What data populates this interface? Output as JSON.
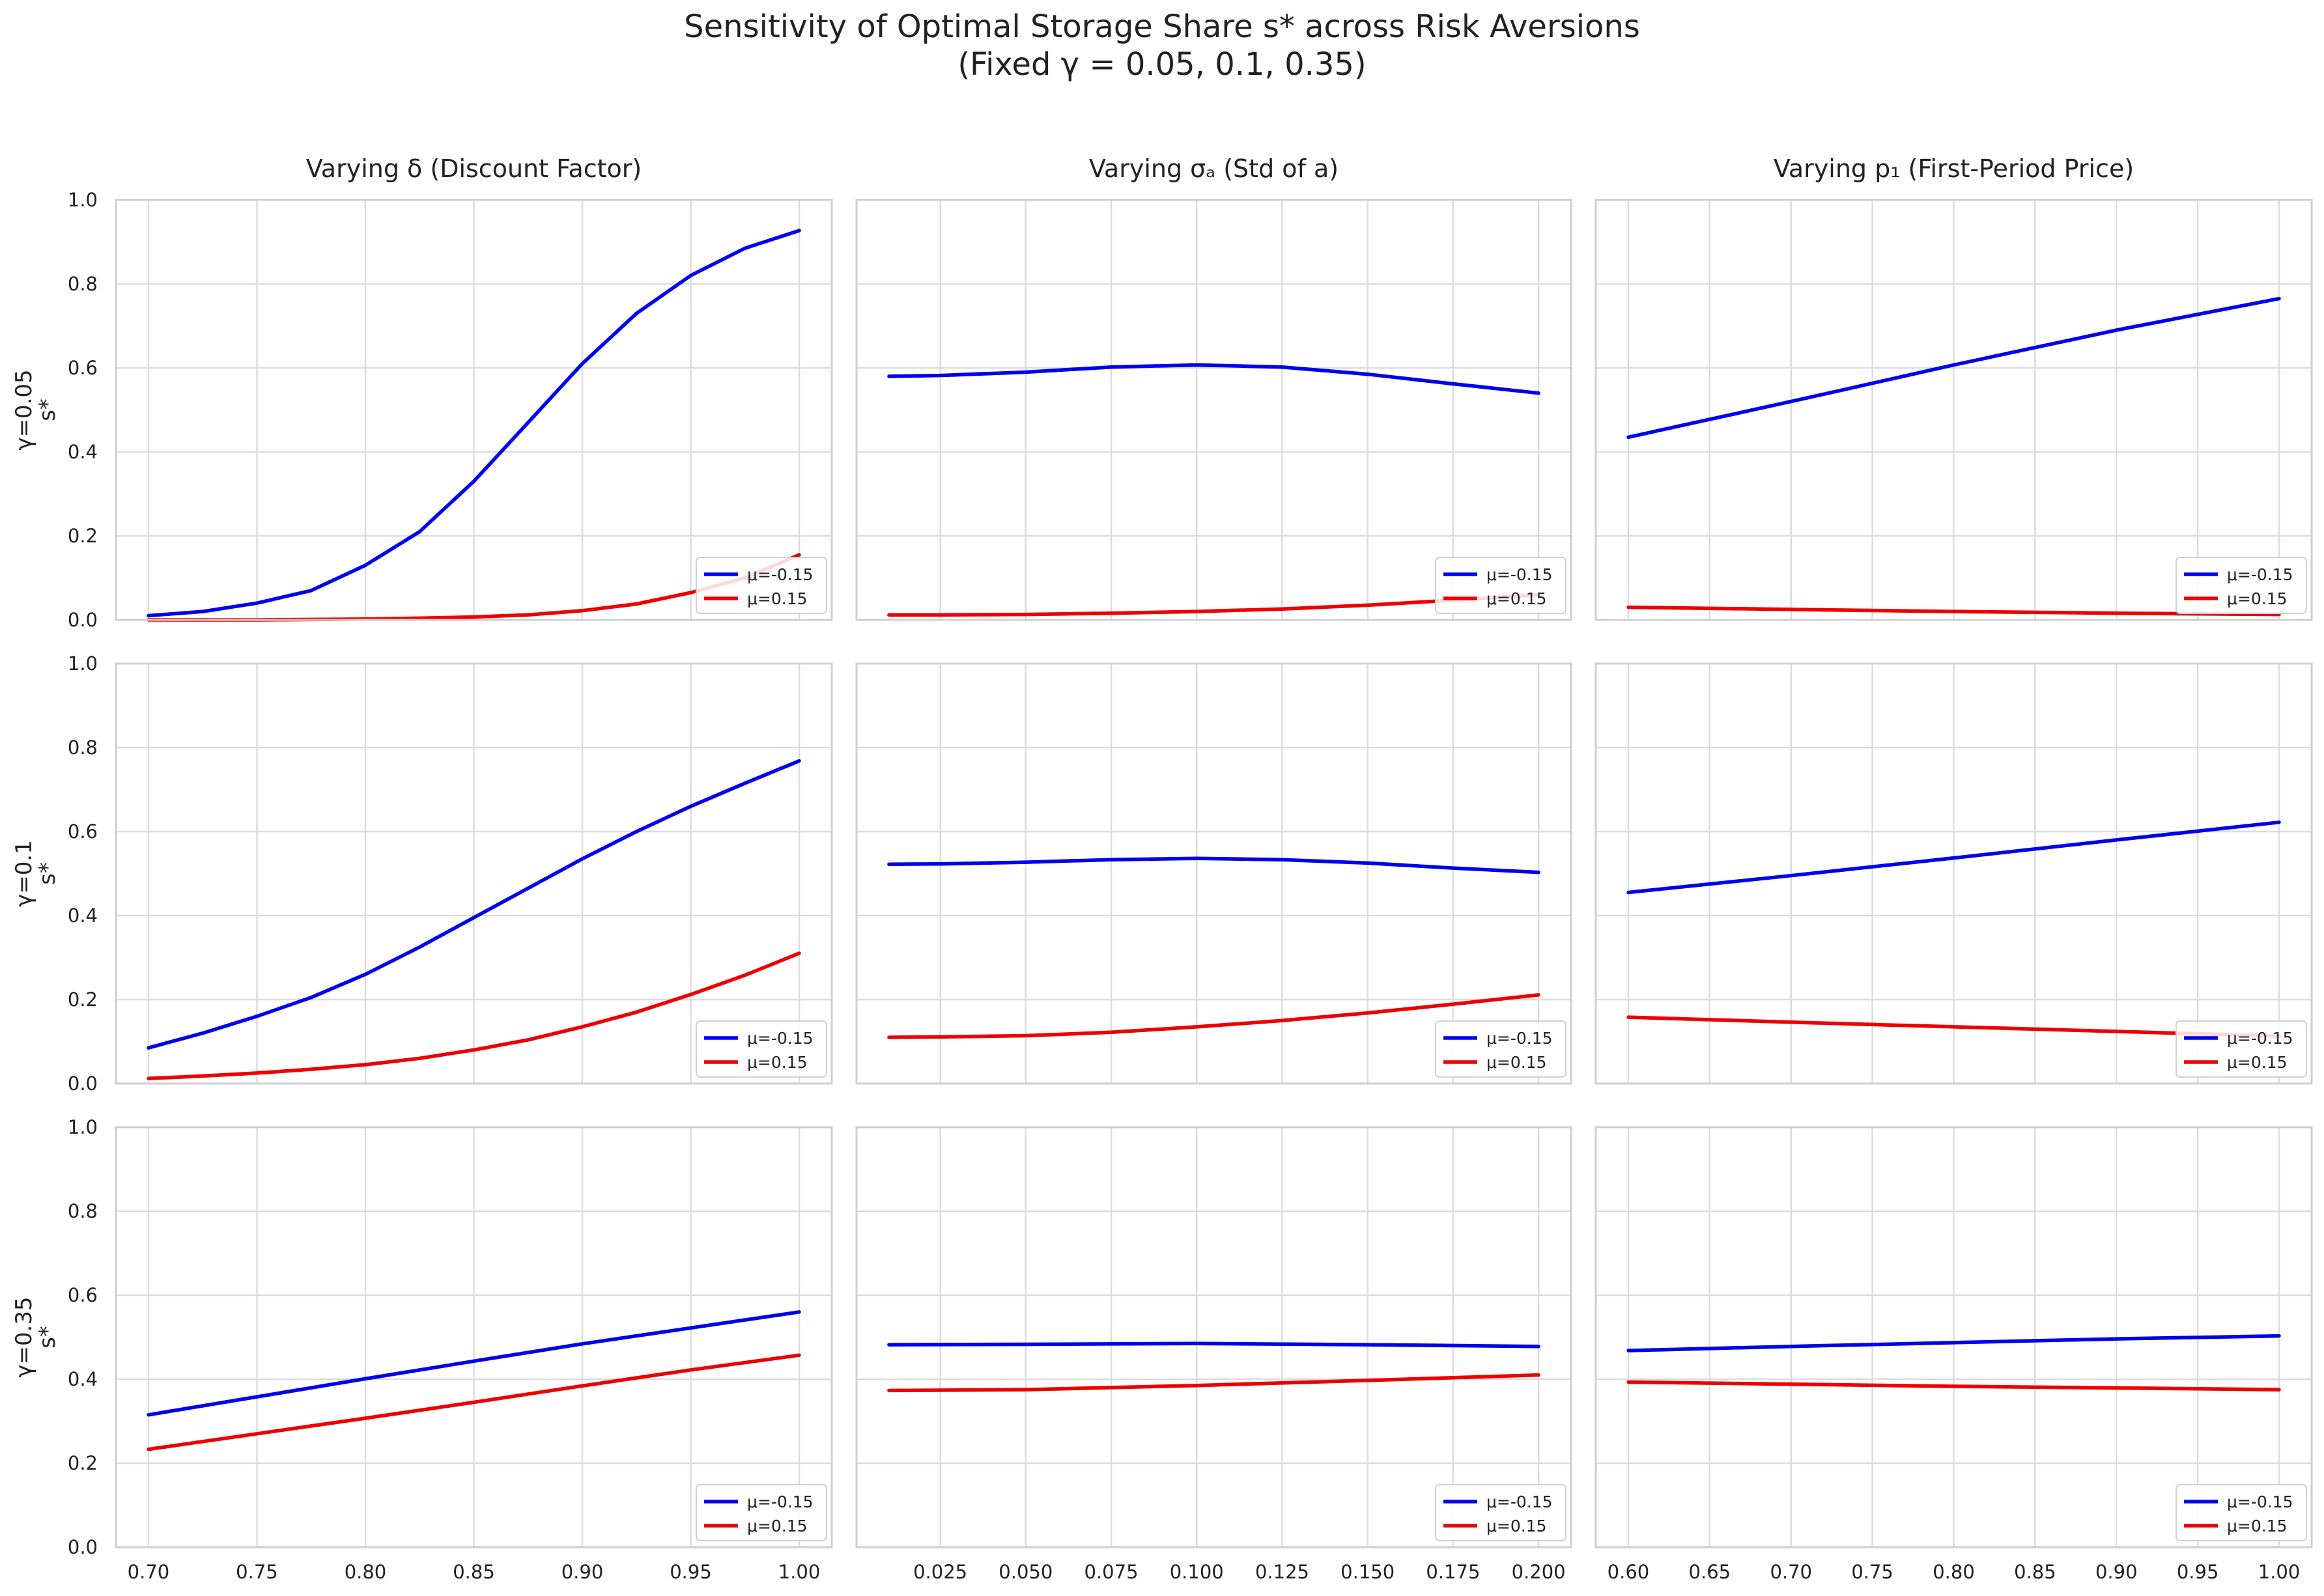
{
  "figure": {
    "title_line1": "Sensitivity of Optimal Storage Share s* across Risk Aversions",
    "title_line2": "(Fixed γ = 0.05, 0.1, 0.35)"
  },
  "series_colors": {
    "mu_neg": "#0000ee",
    "mu_pos": "#ee0000"
  },
  "chart_data": [
    {
      "type": "line",
      "row": 0,
      "col": 0,
      "title": "Varying δ (Discount Factor)",
      "row_label": "γ=0.05",
      "ylabel": "s*",
      "xlabel": "",
      "xlim": [
        0.685,
        1.015
      ],
      "ylim": [
        0,
        1
      ],
      "xticks": [
        "0.70",
        "0.75",
        "0.80",
        "0.85",
        "0.90",
        "0.95",
        "1.00"
      ],
      "yticks": [
        "0.0",
        "0.2",
        "0.4",
        "0.6",
        "0.8",
        "1.0"
      ],
      "legend": "lower-right",
      "x": [
        0.7,
        0.725,
        0.75,
        0.775,
        0.8,
        0.825,
        0.85,
        0.875,
        0.9,
        0.925,
        0.95,
        0.975,
        1.0
      ],
      "series": [
        {
          "name": "μ=-0.15",
          "color": "#0000ee",
          "values": [
            0.01,
            0.02,
            0.04,
            0.07,
            0.13,
            0.21,
            0.33,
            0.47,
            0.61,
            0.73,
            0.82,
            0.885,
            0.927
          ]
        },
        {
          "name": "μ=0.15",
          "color": "#ee0000",
          "values": [
            0.0,
            0.0,
            0.0,
            0.001,
            0.002,
            0.004,
            0.007,
            0.012,
            0.022,
            0.038,
            0.065,
            0.1,
            0.155
          ]
        }
      ]
    },
    {
      "type": "line",
      "row": 0,
      "col": 1,
      "title": "Varying σₐ (Std of a)",
      "row_label": "",
      "ylabel": "",
      "xlabel": "",
      "xlim": [
        0.0005,
        0.2095
      ],
      "ylim": [
        0,
        1
      ],
      "xticks": [
        "0.025",
        "0.050",
        "0.075",
        "0.100",
        "0.125",
        "0.150",
        "0.175",
        "0.200"
      ],
      "yticks": [],
      "legend": "lower-right",
      "x": [
        0.01,
        0.025,
        0.05,
        0.075,
        0.1,
        0.125,
        0.15,
        0.175,
        0.2
      ],
      "series": [
        {
          "name": "μ=-0.15",
          "color": "#0000ee",
          "values": [
            0.58,
            0.582,
            0.59,
            0.602,
            0.607,
            0.602,
            0.585,
            0.562,
            0.54
          ]
        },
        {
          "name": "μ=0.15",
          "color": "#ee0000",
          "values": [
            0.012,
            0.012,
            0.013,
            0.016,
            0.02,
            0.026,
            0.035,
            0.047,
            0.06
          ]
        }
      ]
    },
    {
      "type": "line",
      "row": 0,
      "col": 2,
      "title": "Varying p₁ (First-Period Price)",
      "row_label": "",
      "ylabel": "",
      "xlabel": "",
      "xlim": [
        0.58,
        1.02
      ],
      "ylim": [
        0,
        1
      ],
      "xticks": [
        "0.60",
        "0.65",
        "0.70",
        "0.75",
        "0.80",
        "0.85",
        "0.90",
        "0.95",
        "1.00"
      ],
      "yticks": [],
      "legend": "lower-right",
      "x": [
        0.6,
        0.7,
        0.8,
        0.9,
        1.0
      ],
      "series": [
        {
          "name": "μ=-0.15",
          "color": "#0000ee",
          "values": [
            0.435,
            0.52,
            0.607,
            0.69,
            0.765
          ]
        },
        {
          "name": "μ=0.15",
          "color": "#ee0000",
          "values": [
            0.03,
            0.025,
            0.02,
            0.016,
            0.013
          ]
        }
      ]
    },
    {
      "type": "line",
      "row": 1,
      "col": 0,
      "title": "",
      "row_label": "γ=0.1",
      "ylabel": "s*",
      "xlabel": "",
      "xlim": [
        0.685,
        1.015
      ],
      "ylim": [
        0,
        1
      ],
      "xticks": [
        "0.70",
        "0.75",
        "0.80",
        "0.85",
        "0.90",
        "0.95",
        "1.00"
      ],
      "yticks": [
        "0.0",
        "0.2",
        "0.4",
        "0.6",
        "0.8",
        "1.0"
      ],
      "legend": "lower-right",
      "x": [
        0.7,
        0.725,
        0.75,
        0.775,
        0.8,
        0.825,
        0.85,
        0.875,
        0.9,
        0.925,
        0.95,
        0.975,
        1.0
      ],
      "series": [
        {
          "name": "μ=-0.15",
          "color": "#0000ee",
          "values": [
            0.085,
            0.12,
            0.16,
            0.205,
            0.26,
            0.325,
            0.395,
            0.465,
            0.535,
            0.6,
            0.66,
            0.715,
            0.768
          ]
        },
        {
          "name": "μ=0.15",
          "color": "#ee0000",
          "values": [
            0.012,
            0.018,
            0.025,
            0.034,
            0.045,
            0.06,
            0.08,
            0.104,
            0.135,
            0.17,
            0.212,
            0.258,
            0.31
          ]
        }
      ]
    },
    {
      "type": "line",
      "row": 1,
      "col": 1,
      "title": "",
      "row_label": "",
      "ylabel": "",
      "xlabel": "",
      "xlim": [
        0.0005,
        0.2095
      ],
      "ylim": [
        0,
        1
      ],
      "xticks": [
        "0.025",
        "0.050",
        "0.075",
        "0.100",
        "0.125",
        "0.150",
        "0.175",
        "0.200"
      ],
      "yticks": [],
      "legend": "lower-right",
      "x": [
        0.01,
        0.025,
        0.05,
        0.075,
        0.1,
        0.125,
        0.15,
        0.175,
        0.2
      ],
      "series": [
        {
          "name": "μ=-0.15",
          "color": "#0000ee",
          "values": [
            0.522,
            0.523,
            0.527,
            0.533,
            0.536,
            0.533,
            0.525,
            0.513,
            0.503
          ]
        },
        {
          "name": "μ=0.15",
          "color": "#ee0000",
          "values": [
            0.11,
            0.111,
            0.114,
            0.122,
            0.135,
            0.15,
            0.168,
            0.189,
            0.211
          ]
        }
      ]
    },
    {
      "type": "line",
      "row": 1,
      "col": 2,
      "title": "",
      "row_label": "",
      "ylabel": "",
      "xlabel": "",
      "xlim": [
        0.58,
        1.02
      ],
      "ylim": [
        0,
        1
      ],
      "xticks": [
        "0.60",
        "0.65",
        "0.70",
        "0.75",
        "0.80",
        "0.85",
        "0.90",
        "0.95",
        "1.00"
      ],
      "yticks": [],
      "legend": "lower-right",
      "x": [
        0.6,
        0.7,
        0.8,
        0.9,
        1.0
      ],
      "series": [
        {
          "name": "μ=-0.15",
          "color": "#0000ee",
          "values": [
            0.455,
            0.495,
            0.537,
            0.58,
            0.622
          ]
        },
        {
          "name": "μ=0.15",
          "color": "#ee0000",
          "values": [
            0.158,
            0.146,
            0.135,
            0.124,
            0.113
          ]
        }
      ]
    },
    {
      "type": "line",
      "row": 2,
      "col": 0,
      "title": "",
      "row_label": "γ=0.35",
      "ylabel": "s*",
      "xlabel": "",
      "xlim": [
        0.685,
        1.015
      ],
      "ylim": [
        0,
        1
      ],
      "xticks": [
        "0.70",
        "0.75",
        "0.80",
        "0.85",
        "0.90",
        "0.95",
        "1.00"
      ],
      "yticks": [
        "0.0",
        "0.2",
        "0.4",
        "0.6",
        "0.8",
        "1.0"
      ],
      "legend": "lower-right",
      "x": [
        0.7,
        0.75,
        0.8,
        0.85,
        0.9,
        0.95,
        1.0
      ],
      "series": [
        {
          "name": "μ=-0.15",
          "color": "#0000ee",
          "values": [
            0.315,
            0.358,
            0.401,
            0.443,
            0.484,
            0.522,
            0.56
          ]
        },
        {
          "name": "μ=0.15",
          "color": "#ee0000",
          "values": [
            0.233,
            0.27,
            0.307,
            0.345,
            0.384,
            0.422,
            0.457
          ]
        }
      ]
    },
    {
      "type": "line",
      "row": 2,
      "col": 1,
      "title": "",
      "row_label": "",
      "ylabel": "",
      "xlabel": "",
      "xlim": [
        0.0005,
        0.2095
      ],
      "ylim": [
        0,
        1
      ],
      "xticks": [
        "0.025",
        "0.050",
        "0.075",
        "0.100",
        "0.125",
        "0.150",
        "0.175",
        "0.200"
      ],
      "yticks": [],
      "legend": "lower-right",
      "x": [
        0.01,
        0.05,
        0.1,
        0.15,
        0.2
      ],
      "series": [
        {
          "name": "μ=-0.15",
          "color": "#0000ee",
          "values": [
            0.482,
            0.483,
            0.485,
            0.482,
            0.478
          ]
        },
        {
          "name": "μ=0.15",
          "color": "#ee0000",
          "values": [
            0.373,
            0.375,
            0.385,
            0.397,
            0.41
          ]
        }
      ]
    },
    {
      "type": "line",
      "row": 2,
      "col": 2,
      "title": "",
      "row_label": "",
      "ylabel": "",
      "xlabel": "",
      "xlim": [
        0.58,
        1.02
      ],
      "ylim": [
        0,
        1
      ],
      "xticks": [
        "0.60",
        "0.65",
        "0.70",
        "0.75",
        "0.80",
        "0.85",
        "0.90",
        "0.95",
        "1.00"
      ],
      "yticks": [],
      "legend": "lower-right",
      "x": [
        0.6,
        0.7,
        0.8,
        0.9,
        1.0
      ],
      "series": [
        {
          "name": "μ=-0.15",
          "color": "#0000ee",
          "values": [
            0.468,
            0.478,
            0.487,
            0.496,
            0.503
          ]
        },
        {
          "name": "μ=0.15",
          "color": "#ee0000",
          "values": [
            0.393,
            0.388,
            0.383,
            0.379,
            0.375
          ]
        }
      ]
    }
  ]
}
